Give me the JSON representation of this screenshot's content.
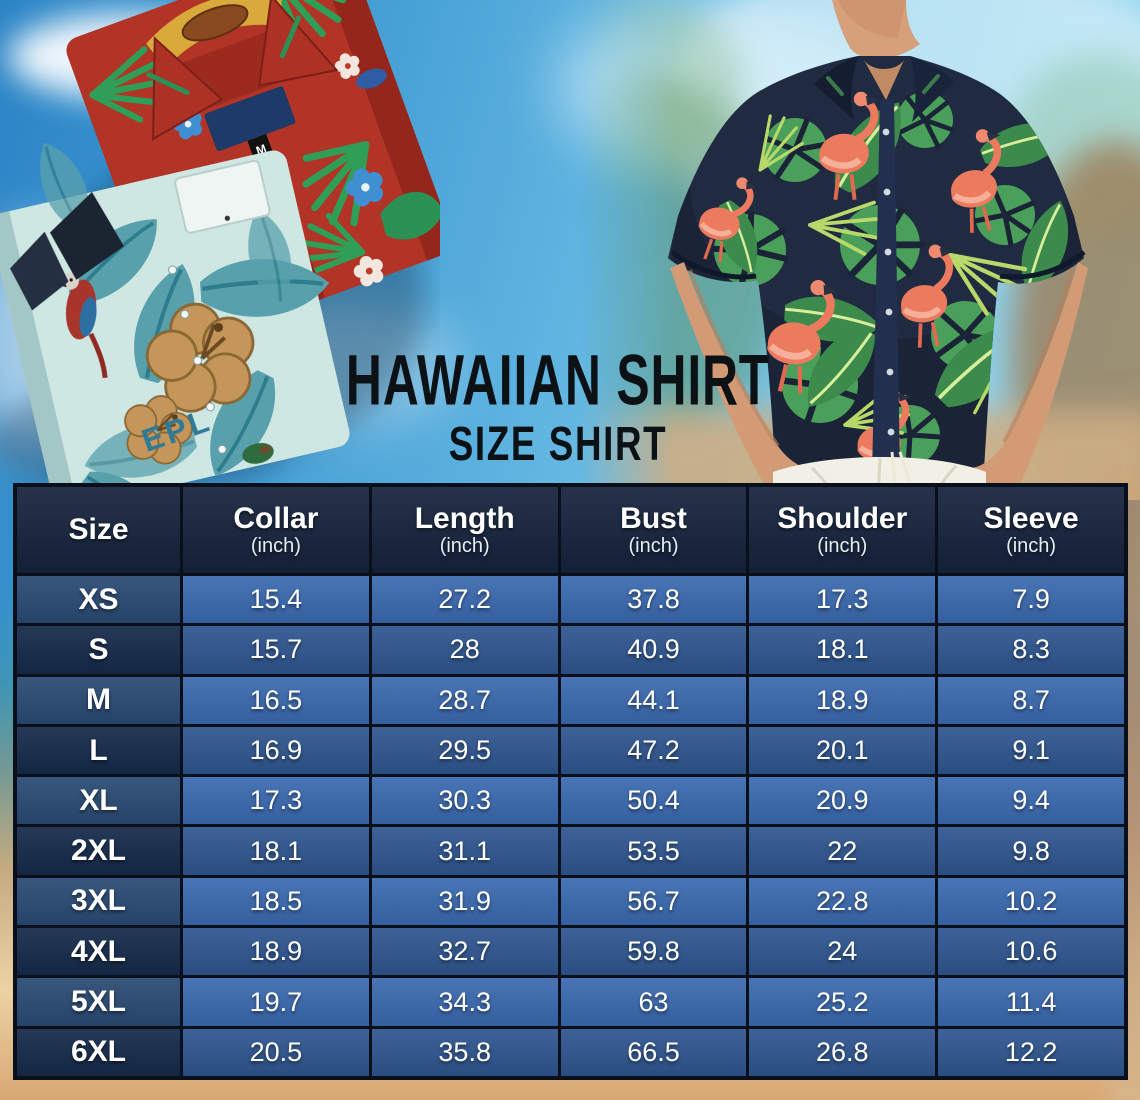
{
  "title": {
    "line1": "HAWAIIAN SHIRT",
    "line2": "SIZE SHIRT"
  },
  "chart_data": {
    "type": "table",
    "title": "Hawaiian Shirt Size Chart",
    "unit": "inch",
    "columns": [
      {
        "label": "Size",
        "sub": ""
      },
      {
        "label": "Collar",
        "sub": "(inch)"
      },
      {
        "label": "Length",
        "sub": "(inch)"
      },
      {
        "label": "Bust",
        "sub": "(inch)"
      },
      {
        "label": "Shoulder",
        "sub": "(inch)"
      },
      {
        "label": "Sleeve",
        "sub": "(inch)"
      }
    ],
    "rows": [
      [
        "XS",
        "15.4",
        "27.2",
        "37.8",
        "17.3",
        "7.9"
      ],
      [
        "S",
        "15.7",
        "28",
        "40.9",
        "18.1",
        "8.3"
      ],
      [
        "M",
        "16.5",
        "28.7",
        "44.1",
        "18.9",
        "8.7"
      ],
      [
        "L",
        "16.9",
        "29.5",
        "47.2",
        "20.1",
        "9.1"
      ],
      [
        "XL",
        "17.3",
        "30.3",
        "50.4",
        "20.9",
        "9.4"
      ],
      [
        "2XL",
        "18.1",
        "31.1",
        "53.5",
        "22",
        "9.8"
      ],
      [
        "3XL",
        "18.5",
        "31.9",
        "56.7",
        "22.8",
        "10.2"
      ],
      [
        "4XL",
        "18.9",
        "32.7",
        "59.8",
        "24",
        "10.6"
      ],
      [
        "5XL",
        "19.7",
        "34.3",
        "63",
        "25.2",
        "11.4"
      ],
      [
        "6XL",
        "20.5",
        "35.8",
        "66.5",
        "26.8",
        "12.2"
      ]
    ]
  },
  "photos": {
    "left": {
      "description": "two folded hawaiian shirts",
      "collar_tag": "M",
      "print_text": "EPL"
    },
    "right": {
      "description": "man wearing navy flamingo hawaiian shirt"
    }
  },
  "colors": {
    "header-bg": "#15233c",
    "row-light": "#3b6ab0",
    "row-dark": "#2f5690",
    "size-light": "#2a4a74",
    "size-dark": "#152a4b",
    "border": "#0a0f1c",
    "title-text": "#0c1116",
    "accent-red-shirt": "#b23427",
    "accent-teal-shirt": "#cfe7e3",
    "accent-navy-shirt": "#1b2336",
    "flamingo": "#ec7a5f",
    "leaf-green": "#3f9150",
    "sand": "#ecd2a4",
    "sky": "#5fb4e0"
  }
}
